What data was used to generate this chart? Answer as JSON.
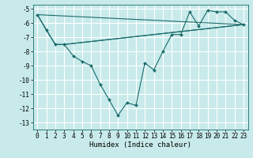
{
  "xlabel": "Humidex (Indice chaleur)",
  "ylabel": "",
  "bg_color": "#c8eaea",
  "grid_color": "#ffffff",
  "line_color": "#1a6b6b",
  "marker": "D",
  "marker_size": 2.0,
  "xlim": [
    -0.5,
    23.5
  ],
  "ylim": [
    -13.5,
    -4.7
  ],
  "yticks": [
    -13,
    -12,
    -11,
    -10,
    -9,
    -8,
    -7,
    -6,
    -5
  ],
  "xticks": [
    0,
    1,
    2,
    3,
    4,
    5,
    6,
    7,
    8,
    9,
    10,
    11,
    12,
    13,
    14,
    15,
    16,
    17,
    18,
    19,
    20,
    21,
    22,
    23
  ],
  "tick_fontsize": 5.5,
  "xlabel_fontsize": 6.5,
  "series": [
    {
      "x": [
        0,
        1,
        2,
        3,
        4,
        5,
        6,
        7,
        8,
        9,
        10,
        11,
        12,
        13,
        14,
        15,
        16,
        17,
        18,
        19,
        20,
        21,
        22,
        23
      ],
      "y": [
        -5.4,
        -6.5,
        -7.5,
        -7.5,
        -8.3,
        -8.7,
        -9.0,
        -10.3,
        -11.4,
        -12.5,
        -11.6,
        -11.8,
        -8.8,
        -9.3,
        -8.0,
        -6.8,
        -6.8,
        -5.2,
        -6.2,
        -5.1,
        -5.2,
        -5.2,
        -5.8,
        -6.1
      ],
      "has_markers": true
    },
    {
      "x": [
        0,
        2,
        3,
        23
      ],
      "y": [
        -5.4,
        -7.5,
        -7.5,
        -6.1
      ],
      "has_markers": false
    },
    {
      "x": [
        0,
        23
      ],
      "y": [
        -5.4,
        -6.1
      ],
      "has_markers": false
    },
    {
      "x": [
        3,
        23
      ],
      "y": [
        -7.5,
        -6.1
      ],
      "has_markers": false
    }
  ]
}
